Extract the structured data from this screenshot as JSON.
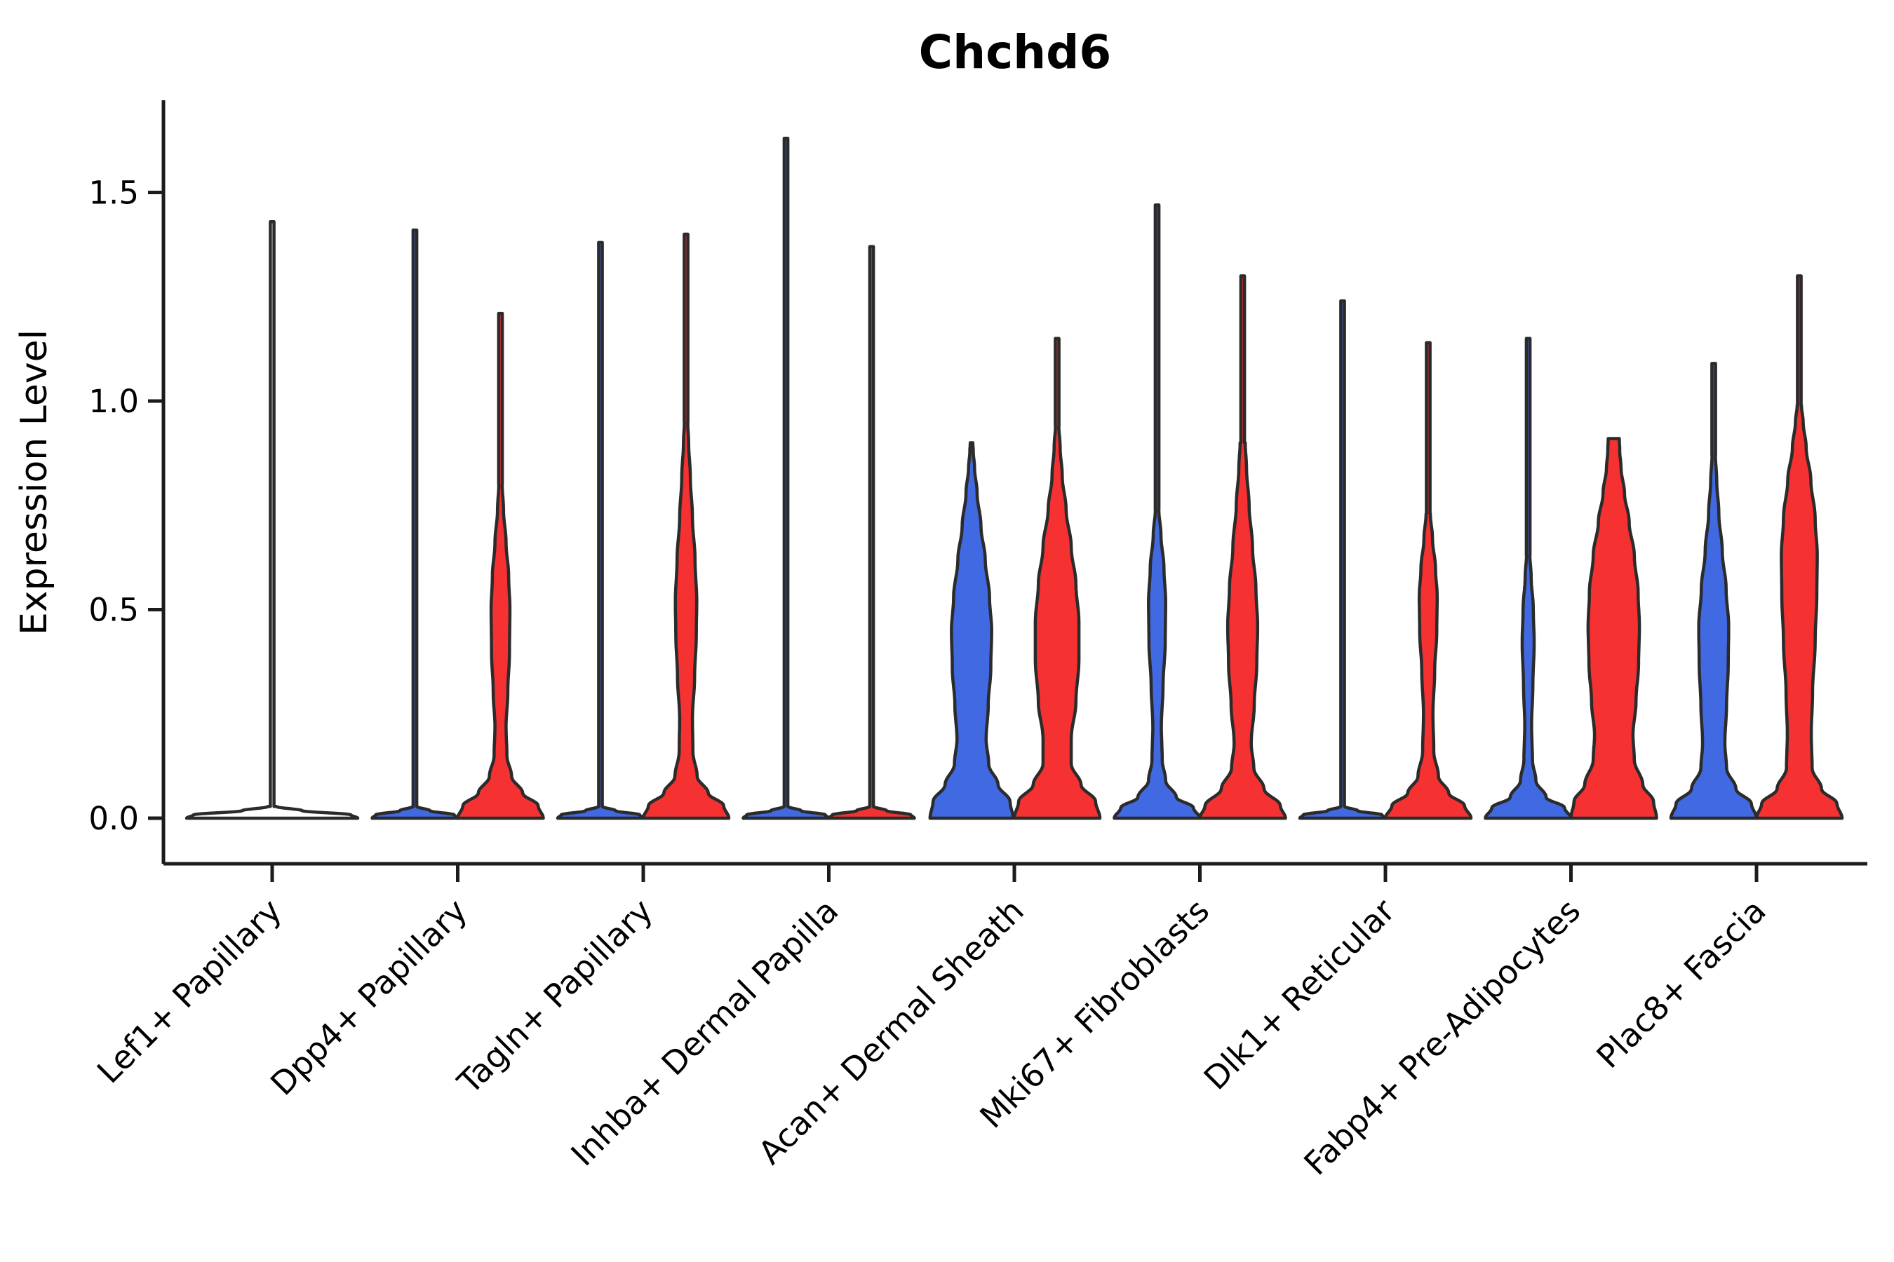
{
  "chart_data": {
    "type": "violin",
    "subtype": "split-violin-expression-plot",
    "title": "Chchd6",
    "ylabel": "Expression Level",
    "xlabel": "",
    "grid": false,
    "legend_position": "none",
    "ylim": [
      -0.07,
      1.72
    ],
    "yticks": [
      {
        "value": 0.0,
        "label": "0.0"
      },
      {
        "value": 0.5,
        "label": "0.5"
      },
      {
        "value": 1.0,
        "label": "1.0"
      },
      {
        "value": 1.5,
        "label": "1.5"
      }
    ],
    "split_colors": {
      "blue": "#4169E1",
      "red": "#F53131",
      "none": "#FFFFFF"
    },
    "outline_color": "#2B2B2B",
    "axis_color": "#1C1C1C",
    "categories": [
      "Lef1+ Papillary",
      "Dpp4+ Papillary",
      "Tagln+ Papillary",
      "Inhba+ Dermal Papilla",
      "Acan+ Dermal Sheath",
      "Mki67+ Fibroblasts",
      "Dlk1+ Reticular",
      "Fabp4+ Pre-Adipocytes",
      "Plac8+ Fascia"
    ],
    "groups": [
      {
        "category": "Lef1+ Papillary",
        "violins": [
          {
            "split": "single",
            "color": "none",
            "max_expression": 1.43,
            "spike": 1.43,
            "profile": [
              [
                0,
                1
              ],
              [
                0.008,
                0.92
              ],
              [
                0.018,
                0.35
              ],
              [
                0.028,
                0.05
              ]
            ]
          }
        ]
      },
      {
        "category": "Dpp4+ Papillary",
        "violins": [
          {
            "split": "blue",
            "color": "blue",
            "max_expression": 1.41,
            "spike": 1.41,
            "profile": [
              [
                0,
                1
              ],
              [
                0.008,
                0.92
              ],
              [
                0.018,
                0.35
              ],
              [
                0.028,
                0.05
              ]
            ]
          },
          {
            "split": "red",
            "color": "red",
            "max_expression": 1.21,
            "spike": 1.21,
            "profile": [
              [
                0,
                1
              ],
              [
                0.03,
                0.88
              ],
              [
                0.06,
                0.52
              ],
              [
                0.1,
                0.26
              ],
              [
                0.15,
                0.15
              ],
              [
                0.22,
                0.13
              ],
              [
                0.3,
                0.17
              ],
              [
                0.4,
                0.21
              ],
              [
                0.5,
                0.22
              ],
              [
                0.58,
                0.19
              ],
              [
                0.66,
                0.13
              ],
              [
                0.74,
                0.07
              ],
              [
                0.8,
                0.04
              ]
            ]
          }
        ]
      },
      {
        "category": "Tagln+ Papillary",
        "violins": [
          {
            "split": "blue",
            "color": "blue",
            "max_expression": 1.38,
            "spike": 1.38,
            "profile": [
              [
                0,
                1
              ],
              [
                0.008,
                0.92
              ],
              [
                0.018,
                0.35
              ],
              [
                0.028,
                0.05
              ]
            ]
          },
          {
            "split": "red",
            "color": "red",
            "max_expression": 1.4,
            "spike": 1.4,
            "profile": [
              [
                0,
                1
              ],
              [
                0.03,
                0.88
              ],
              [
                0.06,
                0.52
              ],
              [
                0.1,
                0.26
              ],
              [
                0.16,
                0.16
              ],
              [
                0.24,
                0.15
              ],
              [
                0.34,
                0.2
              ],
              [
                0.44,
                0.24
              ],
              [
                0.52,
                0.25
              ],
              [
                0.62,
                0.21
              ],
              [
                0.72,
                0.15
              ],
              [
                0.82,
                0.1
              ],
              [
                0.9,
                0.06
              ],
              [
                0.95,
                0.04
              ]
            ]
          }
        ]
      },
      {
        "category": "Inhba+ Dermal Papilla",
        "violins": [
          {
            "split": "blue",
            "color": "blue",
            "max_expression": 1.63,
            "spike": 1.63,
            "profile": [
              [
                0,
                1
              ],
              [
                0.008,
                0.92
              ],
              [
                0.018,
                0.35
              ],
              [
                0.028,
                0.05
              ]
            ]
          },
          {
            "split": "red",
            "color": "red",
            "max_expression": 1.37,
            "spike": 1.37,
            "profile": [
              [
                0,
                1
              ],
              [
                0.008,
                0.92
              ],
              [
                0.018,
                0.35
              ],
              [
                0.028,
                0.05
              ]
            ]
          }
        ]
      },
      {
        "category": "Acan+ Dermal Sheath",
        "violins": [
          {
            "split": "blue",
            "color": "blue",
            "max_expression": 0.9,
            "spike": null,
            "profile": [
              [
                0,
                0.97
              ],
              [
                0.04,
                0.9
              ],
              [
                0.08,
                0.62
              ],
              [
                0.13,
                0.4
              ],
              [
                0.19,
                0.34
              ],
              [
                0.27,
                0.39
              ],
              [
                0.36,
                0.45
              ],
              [
                0.45,
                0.47
              ],
              [
                0.53,
                0.42
              ],
              [
                0.62,
                0.32
              ],
              [
                0.7,
                0.22
              ],
              [
                0.78,
                0.13
              ],
              [
                0.84,
                0.07
              ],
              [
                0.88,
                0.04
              ],
              [
                0.9,
                0.03
              ]
            ]
          },
          {
            "split": "red",
            "color": "red",
            "max_expression": 1.15,
            "spike": 1.15,
            "profile": [
              [
                0,
                1
              ],
              [
                0.04,
                0.9
              ],
              [
                0.08,
                0.56
              ],
              [
                0.13,
                0.33
              ],
              [
                0.19,
                0.33
              ],
              [
                0.28,
                0.44
              ],
              [
                0.38,
                0.51
              ],
              [
                0.47,
                0.51
              ],
              [
                0.56,
                0.44
              ],
              [
                0.65,
                0.33
              ],
              [
                0.74,
                0.21
              ],
              [
                0.82,
                0.12
              ],
              [
                0.89,
                0.07
              ],
              [
                0.94,
                0.04
              ]
            ]
          }
        ]
      },
      {
        "category": "Mki67+ Fibroblasts",
        "violins": [
          {
            "split": "blue",
            "color": "blue",
            "max_expression": 1.47,
            "spike": 1.47,
            "profile": [
              [
                0,
                1
              ],
              [
                0.025,
                0.85
              ],
              [
                0.05,
                0.45
              ],
              [
                0.09,
                0.2
              ],
              [
                0.14,
                0.12
              ],
              [
                0.22,
                0.1
              ],
              [
                0.32,
                0.14
              ],
              [
                0.42,
                0.19
              ],
              [
                0.52,
                0.2
              ],
              [
                0.6,
                0.16
              ],
              [
                0.68,
                0.09
              ],
              [
                0.74,
                0.04
              ]
            ]
          },
          {
            "split": "red",
            "color": "red",
            "max_expression": 1.3,
            "spike": 1.3,
            "profile": [
              [
                0,
                1
              ],
              [
                0.03,
                0.88
              ],
              [
                0.07,
                0.5
              ],
              [
                0.12,
                0.26
              ],
              [
                0.18,
                0.2
              ],
              [
                0.27,
                0.27
              ],
              [
                0.37,
                0.33
              ],
              [
                0.46,
                0.35
              ],
              [
                0.55,
                0.31
              ],
              [
                0.65,
                0.23
              ],
              [
                0.75,
                0.15
              ],
              [
                0.84,
                0.09
              ],
              [
                0.9,
                0.06
              ]
            ]
          }
        ]
      },
      {
        "category": "Dlk1+ Reticular",
        "violins": [
          {
            "split": "blue",
            "color": "blue",
            "max_expression": 1.24,
            "spike": 1.24,
            "profile": [
              [
                0,
                1
              ],
              [
                0.008,
                0.92
              ],
              [
                0.018,
                0.35
              ],
              [
                0.028,
                0.05
              ]
            ]
          },
          {
            "split": "red",
            "color": "red",
            "max_expression": 1.14,
            "spike": 1.14,
            "profile": [
              [
                0,
                1
              ],
              [
                0.03,
                0.85
              ],
              [
                0.06,
                0.48
              ],
              [
                0.1,
                0.24
              ],
              [
                0.16,
                0.13
              ],
              [
                0.25,
                0.11
              ],
              [
                0.35,
                0.15
              ],
              [
                0.45,
                0.2
              ],
              [
                0.53,
                0.21
              ],
              [
                0.6,
                0.17
              ],
              [
                0.67,
                0.1
              ],
              [
                0.73,
                0.05
              ]
            ]
          }
        ]
      },
      {
        "category": "Fabp4+ Pre-Adipocytes",
        "violins": [
          {
            "split": "blue",
            "color": "blue",
            "max_expression": 1.15,
            "spike": 1.15,
            "profile": [
              [
                0,
                1
              ],
              [
                0.025,
                0.85
              ],
              [
                0.05,
                0.42
              ],
              [
                0.09,
                0.18
              ],
              [
                0.14,
                0.1
              ],
              [
                0.22,
                0.08
              ],
              [
                0.32,
                0.11
              ],
              [
                0.42,
                0.14
              ],
              [
                0.5,
                0.12
              ],
              [
                0.58,
                0.07
              ],
              [
                0.63,
                0.04
              ]
            ]
          },
          {
            "split": "red",
            "color": "red",
            "max_expression": 0.91,
            "spike": null,
            "profile": [
              [
                0,
                1
              ],
              [
                0.04,
                0.93
              ],
              [
                0.08,
                0.68
              ],
              [
                0.14,
                0.48
              ],
              [
                0.2,
                0.45
              ],
              [
                0.28,
                0.52
              ],
              [
                0.37,
                0.58
              ],
              [
                0.46,
                0.6
              ],
              [
                0.54,
                0.57
              ],
              [
                0.63,
                0.48
              ],
              [
                0.71,
                0.36
              ],
              [
                0.78,
                0.25
              ],
              [
                0.84,
                0.17
              ],
              [
                0.88,
                0.14
              ],
              [
                0.91,
                0.13
              ]
            ]
          }
        ]
      },
      {
        "category": "Plac8+ Fascia",
        "violins": [
          {
            "split": "blue",
            "color": "blue",
            "max_expression": 1.09,
            "spike": 1.09,
            "profile": [
              [
                0,
                1
              ],
              [
                0.035,
                0.88
              ],
              [
                0.07,
                0.52
              ],
              [
                0.12,
                0.3
              ],
              [
                0.18,
                0.26
              ],
              [
                0.27,
                0.3
              ],
              [
                0.37,
                0.34
              ],
              [
                0.46,
                0.35
              ],
              [
                0.55,
                0.29
              ],
              [
                0.64,
                0.2
              ],
              [
                0.73,
                0.12
              ],
              [
                0.81,
                0.07
              ],
              [
                0.87,
                0.04
              ]
            ]
          },
          {
            "split": "red",
            "color": "red",
            "max_expression": 1.3,
            "spike": 1.3,
            "profile": [
              [
                0,
                1
              ],
              [
                0.035,
                0.88
              ],
              [
                0.07,
                0.52
              ],
              [
                0.12,
                0.3
              ],
              [
                0.2,
                0.28
              ],
              [
                0.3,
                0.31
              ],
              [
                0.42,
                0.37
              ],
              [
                0.54,
                0.41
              ],
              [
                0.63,
                0.42
              ],
              [
                0.72,
                0.37
              ],
              [
                0.81,
                0.27
              ],
              [
                0.89,
                0.16
              ],
              [
                0.95,
                0.09
              ],
              [
                0.99,
                0.05
              ]
            ]
          }
        ]
      }
    ]
  }
}
